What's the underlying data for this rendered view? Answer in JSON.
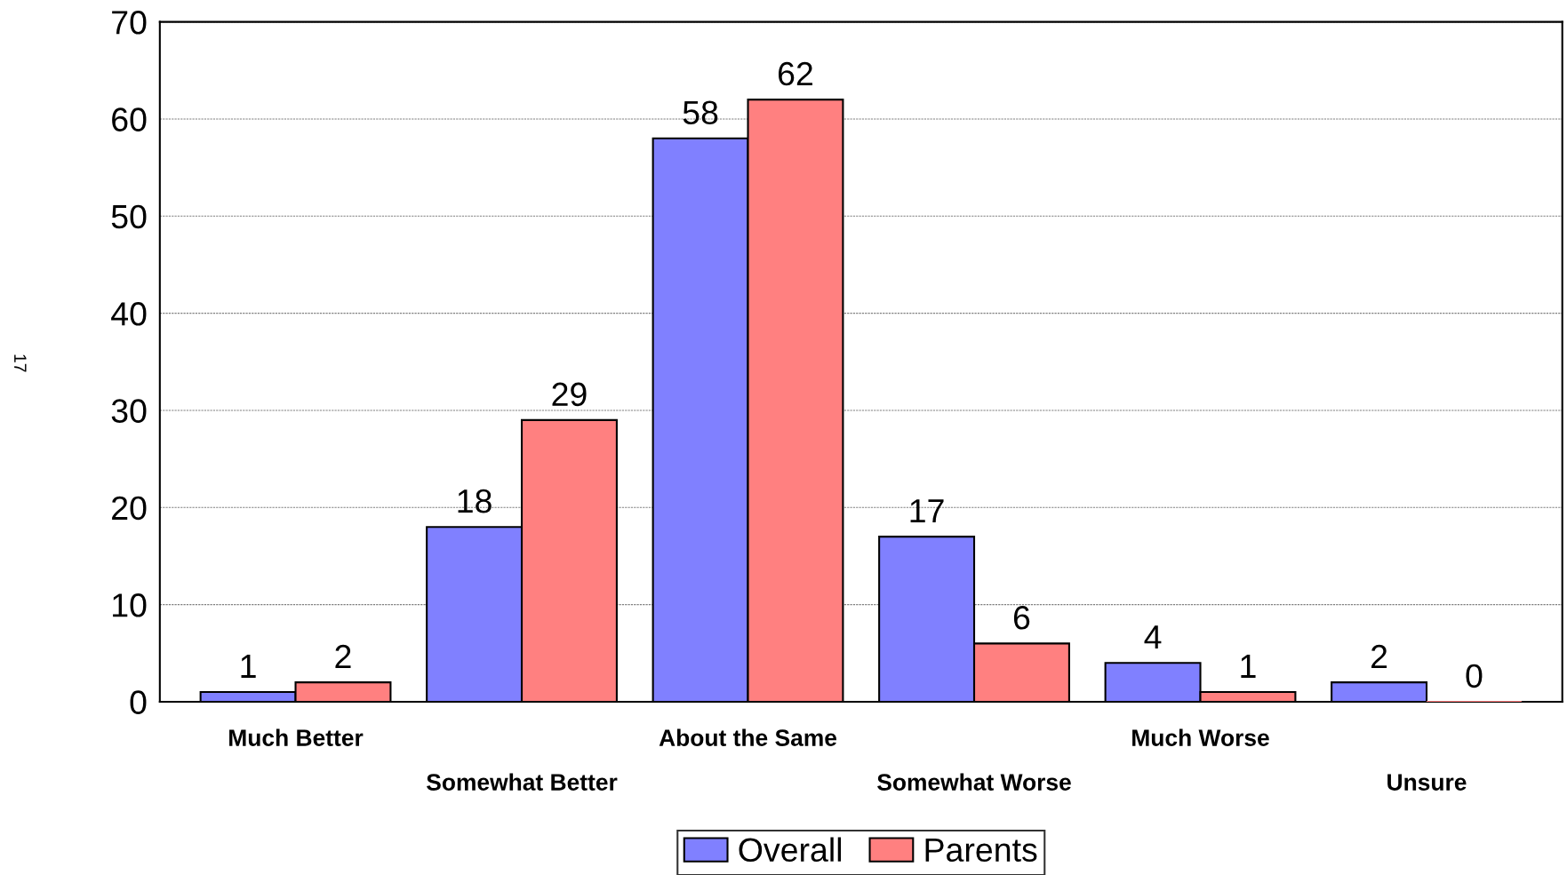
{
  "chart_data": {
    "type": "bar",
    "categories": [
      "Much Better",
      "Somewhat Better",
      "About the Same",
      "Somewhat Worse",
      "Much Worse",
      "Unsure"
    ],
    "series": [
      {
        "name": "Overall",
        "color": "#8080ff",
        "values": [
          1,
          18,
          58,
          17,
          4,
          2
        ]
      },
      {
        "name": "Parents",
        "color": "#ff8080",
        "values": [
          2,
          29,
          62,
          6,
          1,
          0
        ]
      }
    ],
    "ylim": [
      0,
      70
    ],
    "yticks": [
      0,
      10,
      20,
      30,
      40,
      50,
      60,
      70
    ],
    "grid": "y",
    "legend": "bottom",
    "data_labels": true,
    "annotations": [
      "17"
    ]
  }
}
